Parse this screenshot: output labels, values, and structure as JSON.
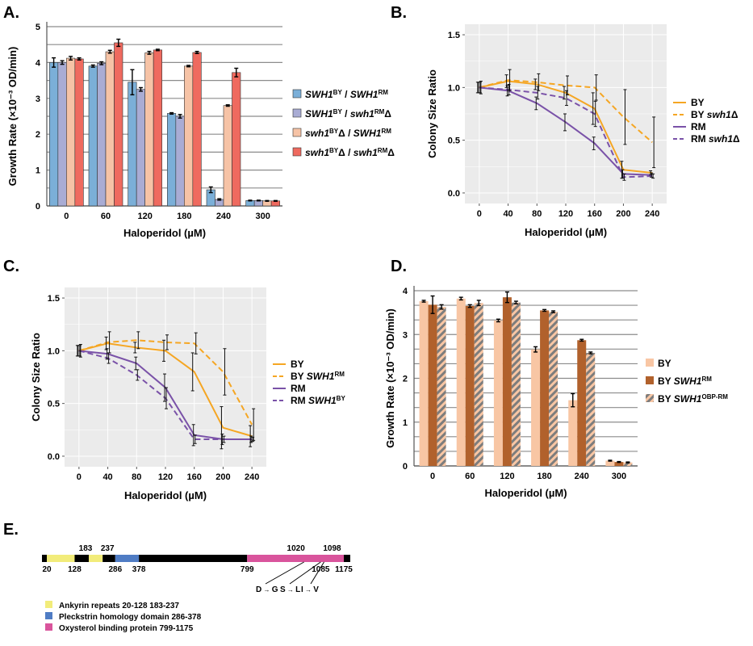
{
  "panels": {
    "a": "A.",
    "b": "B.",
    "c": "C.",
    "d": "D.",
    "e": "E."
  },
  "chart_data": [
    {
      "id": "A",
      "type": "bar",
      "xlabel": "Haloperidol (µM)",
      "ylabel": "Growth Rate (×10⁻³ OD/min)",
      "ylim": [
        0,
        5
      ],
      "yticks": [
        "0",
        "1",
        "2",
        "3",
        "4",
        "5"
      ],
      "categories": [
        "0",
        "60",
        "120",
        "180",
        "240",
        "300"
      ],
      "series": [
        {
          "name": "SWH1BY / SWH1RM",
          "color": "#7bafd8",
          "values": [
            4.0,
            3.9,
            3.45,
            2.58,
            0.45,
            0.15
          ],
          "err": [
            0.13,
            0.03,
            0.35,
            0.02,
            0.08,
            0.01
          ]
        },
        {
          "name": "SWH1BY / swh1RMΔ",
          "color": "#a9acd4",
          "values": [
            4.0,
            3.98,
            3.25,
            2.5,
            0.18,
            0.15
          ],
          "err": [
            0.05,
            0.04,
            0.05,
            0.05,
            0.02,
            0.01
          ]
        },
        {
          "name": "swh1BYΔ / SWH1RM",
          "color": "#f6c3a6",
          "values": [
            4.12,
            4.3,
            4.27,
            3.9,
            2.8,
            0.14
          ],
          "err": [
            0.05,
            0.04,
            0.04,
            0.02,
            0.02,
            0.01
          ]
        },
        {
          "name": "swh1BYΔ / swh1RMΔ",
          "color": "#ef6a5f",
          "values": [
            4.1,
            4.55,
            4.35,
            4.28,
            3.72,
            0.14
          ],
          "err": [
            0.03,
            0.1,
            0.02,
            0.03,
            0.12,
            0.01
          ]
        }
      ],
      "legend": [
        {
          "p1": "SWH1",
          "s1": "BY",
          "mid": " / ",
          "p2": "SWH1",
          "s2": "RM",
          "d2": ""
        },
        {
          "p1": "SWH1",
          "s1": "BY",
          "mid": " / ",
          "p2": "swh1",
          "s2": "RM",
          "d2": "Δ"
        },
        {
          "p1": "swh1",
          "s1": "BY",
          "mid": "Δ / ",
          "p2": "SWH1",
          "s2": "RM",
          "d2": ""
        },
        {
          "p1": "swh1",
          "s1": "BY",
          "mid": "Δ / ",
          "p2": "swh1",
          "s2": "RM",
          "d2": "Δ"
        }
      ]
    },
    {
      "id": "B",
      "type": "line",
      "xlabel": "Haloperidol (µM)",
      "ylabel": "Colony Size Ratio",
      "ylim": [
        0,
        1.5
      ],
      "yticks": [
        "0.0",
        "0.5",
        "1.0",
        "1.5"
      ],
      "x": [
        0,
        40,
        80,
        120,
        160,
        200,
        240
      ],
      "series": [
        {
          "name": "BY",
          "color": "#f5a623",
          "dash": false,
          "values": [
            1.0,
            1.06,
            1.03,
            0.95,
            0.8,
            0.22,
            0.19
          ],
          "err": [
            0.05,
            0.06,
            0.05,
            0.06,
            0.15,
            0.08,
            0.02
          ]
        },
        {
          "name": "BY swh1Δ",
          "color": "#f5a623",
          "dash": true,
          "values": [
            1.0,
            1.07,
            1.05,
            1.02,
            1.0,
            0.72,
            0.48
          ],
          "err": [
            0.06,
            0.1,
            0.08,
            0.09,
            0.12,
            0.26,
            0.24
          ]
        },
        {
          "name": "RM",
          "color": "#7a52a8",
          "dash": false,
          "values": [
            1.0,
            0.97,
            0.85,
            0.67,
            0.47,
            0.18,
            0.17
          ],
          "err": [
            0.05,
            0.05,
            0.06,
            0.08,
            0.06,
            0.04,
            0.02
          ]
        },
        {
          "name": "RM swh1Δ",
          "color": "#7a52a8",
          "dash": true,
          "values": [
            1.0,
            0.98,
            0.95,
            0.9,
            0.75,
            0.15,
            0.16
          ],
          "err": [
            0.05,
            0.05,
            0.06,
            0.07,
            0.12,
            0.03,
            0.02
          ]
        }
      ],
      "legend": [
        {
          "a": "BY",
          "b": "",
          "c": ""
        },
        {
          "a": "BY ",
          "b": "swh1",
          "c": "Δ"
        },
        {
          "a": "RM",
          "b": "",
          "c": ""
        },
        {
          "a": "RM ",
          "b": "swh1",
          "c": "Δ"
        }
      ]
    },
    {
      "id": "C",
      "type": "line",
      "xlabel": "Haloperidol (µM)",
      "ylabel": "Colony Size Ratio",
      "ylim": [
        0,
        1.5
      ],
      "yticks": [
        "0.0",
        "0.5",
        "1.0",
        "1.5"
      ],
      "x": [
        0,
        40,
        80,
        120,
        160,
        200,
        240
      ],
      "series": [
        {
          "name": "BY",
          "color": "#f5a623",
          "dash": false,
          "values": [
            1.0,
            1.07,
            1.03,
            1.0,
            0.8,
            0.27,
            0.19
          ],
          "err": [
            0.05,
            0.06,
            0.05,
            0.1,
            0.18,
            0.2,
            0.1
          ]
        },
        {
          "name": "BY SWH1RM",
          "color": "#f5a623",
          "dash": true,
          "values": [
            1.0,
            1.08,
            1.1,
            1.08,
            1.07,
            0.8,
            0.3
          ],
          "err": [
            0.06,
            0.1,
            0.08,
            0.07,
            0.1,
            0.22,
            0.15
          ]
        },
        {
          "name": "RM",
          "color": "#7a52a8",
          "dash": false,
          "values": [
            1.0,
            0.97,
            0.88,
            0.65,
            0.2,
            0.16,
            0.16
          ],
          "err": [
            0.05,
            0.05,
            0.06,
            0.13,
            0.1,
            0.05,
            0.03
          ]
        },
        {
          "name": "RM SWH1BY",
          "color": "#7a52a8",
          "dash": true,
          "values": [
            1.0,
            0.93,
            0.77,
            0.55,
            0.16,
            0.16,
            0.16
          ],
          "err": [
            0.05,
            0.05,
            0.05,
            0.1,
            0.04,
            0.03,
            0.02
          ]
        }
      ],
      "legend": [
        {
          "a": "BY",
          "b": "",
          "c": ""
        },
        {
          "a": "BY ",
          "b": "SWH1",
          "c": "RM"
        },
        {
          "a": "RM",
          "b": "",
          "c": ""
        },
        {
          "a": "RM ",
          "b": "SWH1",
          "c": "BY"
        }
      ]
    },
    {
      "id": "D",
      "type": "bar",
      "xlabel": "Haloperidol (µM)",
      "ylabel": "Growth Rate (×10⁻³ OD/min)",
      "ylim": [
        0,
        4
      ],
      "yticks": [
        "0",
        "1",
        "2",
        "3",
        "4"
      ],
      "categories": [
        "0",
        "60",
        "120",
        "180",
        "240",
        "300"
      ],
      "series": [
        {
          "name": "BY",
          "color": "#f8c6a4",
          "pattern": "solid",
          "values": [
            3.76,
            3.82,
            3.32,
            2.66,
            1.5,
            0.12
          ],
          "err": [
            0.02,
            0.03,
            0.03,
            0.06,
            0.15,
            0.01
          ]
        },
        {
          "name": "BY SWH1RM",
          "color": "#b1612c",
          "pattern": "solid",
          "values": [
            3.68,
            3.65,
            3.85,
            3.55,
            2.87,
            0.09
          ],
          "err": [
            0.2,
            0.03,
            0.12,
            0.02,
            0.02,
            0.01
          ]
        },
        {
          "name": "BY SWH1OBP-RM",
          "color": "#f8c6a4",
          "pattern": "hatch",
          "values": [
            3.63,
            3.72,
            3.73,
            3.52,
            2.58,
            0.08
          ],
          "err": [
            0.05,
            0.06,
            0.03,
            0.02,
            0.02,
            0.01
          ]
        }
      ],
      "legend": [
        {
          "a": "BY",
          "b": "",
          "c": ""
        },
        {
          "a": "BY ",
          "b": "SWH1",
          "c": "RM"
        },
        {
          "a": "BY ",
          "b": "SWH1",
          "c": "OBP-RM"
        }
      ]
    }
  ],
  "domain_map": {
    "start": 20,
    "end": 1175,
    "segments": [
      {
        "from": 1,
        "to": 20,
        "color": "#000000"
      },
      {
        "from": 20,
        "to": 128,
        "color": "#f2ec7a"
      },
      {
        "from": 128,
        "to": 183,
        "color": "#000000"
      },
      {
        "from": 183,
        "to": 237,
        "color": "#f2ec7a"
      },
      {
        "from": 237,
        "to": 286,
        "color": "#000000"
      },
      {
        "from": 286,
        "to": 378,
        "color": "#4f7cc4"
      },
      {
        "from": 378,
        "to": 799,
        "color": "#000000"
      },
      {
        "from": 799,
        "to": 1175,
        "color": "#d9549c"
      },
      {
        "from": 1175,
        "to": 1200,
        "color": "#000000"
      }
    ],
    "top_labels": [
      "183",
      "237",
      "1020",
      "1098"
    ],
    "bottom_labels": [
      "20",
      "128",
      "286",
      "378",
      "799",
      "1085",
      "1175"
    ],
    "mutations": [
      {
        "from": "D",
        "to": "G"
      },
      {
        "from": "S",
        "to": "L"
      },
      {
        "from": "I",
        "to": "V"
      }
    ],
    "legend": [
      {
        "color": "#f2ec7a",
        "label": "Ankyrin repeats",
        "range": "20-128  183-237"
      },
      {
        "color": "#4f7cc4",
        "label": "Pleckstrin homology domain",
        "range": "286-378"
      },
      {
        "color": "#d9549c",
        "label": "Oxysterol binding protein",
        "range": "799-1175"
      }
    ]
  }
}
